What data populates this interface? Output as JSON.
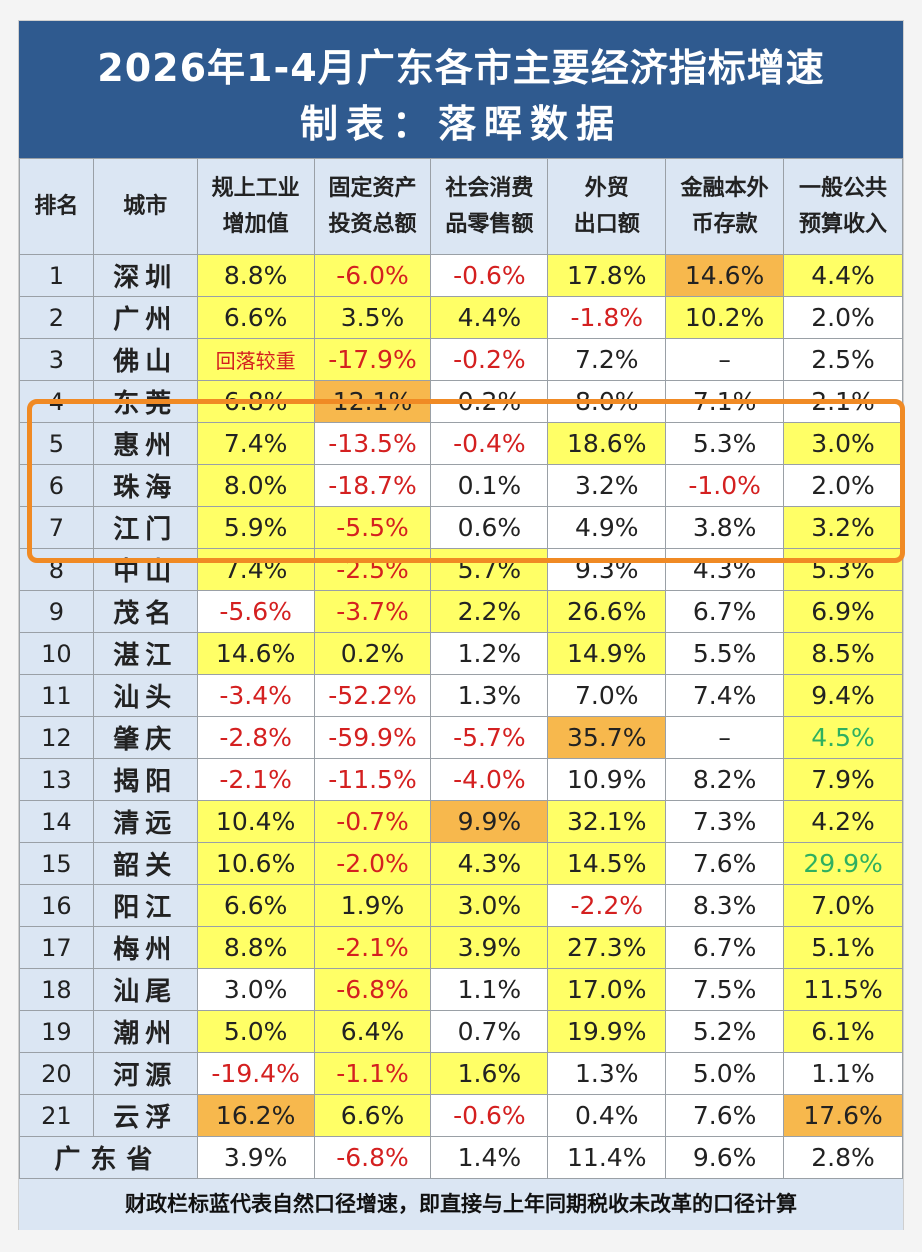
{
  "title": {
    "line1": "2026年1-4月广东各市主要经济指标增速",
    "line2": "制表：落晖数据"
  },
  "columns": [
    {
      "l1": "排名",
      "l2": ""
    },
    {
      "l1": "城市",
      "l2": ""
    },
    {
      "l1": "规上工业",
      "l2": "增加值"
    },
    {
      "l1": "固定资产",
      "l2": "投资总额"
    },
    {
      "l1": "社会消费",
      "l2": "品零售额"
    },
    {
      "l1": "外贸",
      "l2": "出口额"
    },
    {
      "l1": "金融本外",
      "l2": "币存款"
    },
    {
      "l1": "一般公共",
      "l2": "预算收入"
    }
  ],
  "rows": [
    {
      "rank": "1",
      "city": "深圳",
      "cells": [
        {
          "v": "8.8%",
          "bg": "Y",
          "c": ""
        },
        {
          "v": "-6.0%",
          "bg": "Y",
          "c": "red"
        },
        {
          "v": "-0.6%",
          "bg": "W",
          "c": "red"
        },
        {
          "v": "17.8%",
          "bg": "Y",
          "c": ""
        },
        {
          "v": "14.6%",
          "bg": "O",
          "c": ""
        },
        {
          "v": "4.4%",
          "bg": "Y",
          "c": ""
        }
      ]
    },
    {
      "rank": "2",
      "city": "广州",
      "cells": [
        {
          "v": "6.6%",
          "bg": "Y",
          "c": ""
        },
        {
          "v": "3.5%",
          "bg": "Y",
          "c": ""
        },
        {
          "v": "4.4%",
          "bg": "Y",
          "c": ""
        },
        {
          "v": "-1.8%",
          "bg": "W",
          "c": "red"
        },
        {
          "v": "10.2%",
          "bg": "Y",
          "c": ""
        },
        {
          "v": "2.0%",
          "bg": "W",
          "c": ""
        }
      ]
    },
    {
      "rank": "3",
      "city": "佛山",
      "cells": [
        {
          "v": "回落较重",
          "bg": "Y",
          "c": "red small"
        },
        {
          "v": "-17.9%",
          "bg": "Y",
          "c": "red"
        },
        {
          "v": "-0.2%",
          "bg": "W",
          "c": "red"
        },
        {
          "v": "7.2%",
          "bg": "W",
          "c": ""
        },
        {
          "v": "–",
          "bg": "W",
          "c": ""
        },
        {
          "v": "2.5%",
          "bg": "W",
          "c": ""
        }
      ]
    },
    {
      "rank": "4",
      "city": "东莞",
      "cells": [
        {
          "v": "6.8%",
          "bg": "Y",
          "c": ""
        },
        {
          "v": "12.1%",
          "bg": "O",
          "c": ""
        },
        {
          "v": "0.2%",
          "bg": "W",
          "c": ""
        },
        {
          "v": "8.0%",
          "bg": "W",
          "c": ""
        },
        {
          "v": "7.1%",
          "bg": "W",
          "c": ""
        },
        {
          "v": "2.1%",
          "bg": "W",
          "c": ""
        }
      ]
    },
    {
      "rank": "5",
      "city": "惠州",
      "cells": [
        {
          "v": "7.4%",
          "bg": "Y",
          "c": ""
        },
        {
          "v": "-13.5%",
          "bg": "W",
          "c": "red"
        },
        {
          "v": "-0.4%",
          "bg": "W",
          "c": "red"
        },
        {
          "v": "18.6%",
          "bg": "Y",
          "c": ""
        },
        {
          "v": "5.3%",
          "bg": "W",
          "c": ""
        },
        {
          "v": "3.0%",
          "bg": "Y",
          "c": ""
        }
      ]
    },
    {
      "rank": "6",
      "city": "珠海",
      "cells": [
        {
          "v": "8.0%",
          "bg": "Y",
          "c": ""
        },
        {
          "v": "-18.7%",
          "bg": "W",
          "c": "red"
        },
        {
          "v": "0.1%",
          "bg": "W",
          "c": ""
        },
        {
          "v": "3.2%",
          "bg": "W",
          "c": ""
        },
        {
          "v": "-1.0%",
          "bg": "W",
          "c": "red"
        },
        {
          "v": "2.0%",
          "bg": "W",
          "c": ""
        }
      ]
    },
    {
      "rank": "7",
      "city": "江门",
      "cells": [
        {
          "v": "5.9%",
          "bg": "Y",
          "c": ""
        },
        {
          "v": "-5.5%",
          "bg": "Y",
          "c": "red"
        },
        {
          "v": "0.6%",
          "bg": "W",
          "c": ""
        },
        {
          "v": "4.9%",
          "bg": "W",
          "c": ""
        },
        {
          "v": "3.8%",
          "bg": "W",
          "c": ""
        },
        {
          "v": "3.2%",
          "bg": "Y",
          "c": ""
        }
      ]
    },
    {
      "rank": "8",
      "city": "中山",
      "cells": [
        {
          "v": "7.4%",
          "bg": "Y",
          "c": ""
        },
        {
          "v": "-2.5%",
          "bg": "Y",
          "c": "red"
        },
        {
          "v": "5.7%",
          "bg": "Y",
          "c": ""
        },
        {
          "v": "9.3%",
          "bg": "W",
          "c": ""
        },
        {
          "v": "4.3%",
          "bg": "W",
          "c": ""
        },
        {
          "v": "5.3%",
          "bg": "Y",
          "c": ""
        }
      ]
    },
    {
      "rank": "9",
      "city": "茂名",
      "cells": [
        {
          "v": "-5.6%",
          "bg": "W",
          "c": "red"
        },
        {
          "v": "-3.7%",
          "bg": "Y",
          "c": "red"
        },
        {
          "v": "2.2%",
          "bg": "Y",
          "c": ""
        },
        {
          "v": "26.6%",
          "bg": "Y",
          "c": ""
        },
        {
          "v": "6.7%",
          "bg": "W",
          "c": ""
        },
        {
          "v": "6.9%",
          "bg": "Y",
          "c": ""
        }
      ]
    },
    {
      "rank": "10",
      "city": "湛江",
      "cells": [
        {
          "v": "14.6%",
          "bg": "Y",
          "c": ""
        },
        {
          "v": "0.2%",
          "bg": "Y",
          "c": ""
        },
        {
          "v": "1.2%",
          "bg": "W",
          "c": ""
        },
        {
          "v": "14.9%",
          "bg": "Y",
          "c": ""
        },
        {
          "v": "5.5%",
          "bg": "W",
          "c": ""
        },
        {
          "v": "8.5%",
          "bg": "Y",
          "c": ""
        }
      ]
    },
    {
      "rank": "11",
      "city": "汕头",
      "cells": [
        {
          "v": "-3.4%",
          "bg": "W",
          "c": "red"
        },
        {
          "v": "-52.2%",
          "bg": "W",
          "c": "red"
        },
        {
          "v": "1.3%",
          "bg": "W",
          "c": ""
        },
        {
          "v": "7.0%",
          "bg": "W",
          "c": ""
        },
        {
          "v": "7.4%",
          "bg": "W",
          "c": ""
        },
        {
          "v": "9.4%",
          "bg": "Y",
          "c": ""
        }
      ]
    },
    {
      "rank": "12",
      "city": "肇庆",
      "cells": [
        {
          "v": "-2.8%",
          "bg": "W",
          "c": "red"
        },
        {
          "v": "-59.9%",
          "bg": "W",
          "c": "red"
        },
        {
          "v": "-5.7%",
          "bg": "W",
          "c": "red"
        },
        {
          "v": "35.7%",
          "bg": "O",
          "c": ""
        },
        {
          "v": "–",
          "bg": "W",
          "c": ""
        },
        {
          "v": "4.5%",
          "bg": "Y",
          "c": "green"
        }
      ]
    },
    {
      "rank": "13",
      "city": "揭阳",
      "cells": [
        {
          "v": "-2.1%",
          "bg": "W",
          "c": "red"
        },
        {
          "v": "-11.5%",
          "bg": "W",
          "c": "red"
        },
        {
          "v": "-4.0%",
          "bg": "W",
          "c": "red"
        },
        {
          "v": "10.9%",
          "bg": "W",
          "c": ""
        },
        {
          "v": "8.2%",
          "bg": "W",
          "c": ""
        },
        {
          "v": "7.9%",
          "bg": "Y",
          "c": ""
        }
      ]
    },
    {
      "rank": "14",
      "city": "清远",
      "cells": [
        {
          "v": "10.4%",
          "bg": "Y",
          "c": ""
        },
        {
          "v": "-0.7%",
          "bg": "Y",
          "c": "red"
        },
        {
          "v": "9.9%",
          "bg": "O",
          "c": ""
        },
        {
          "v": "32.1%",
          "bg": "Y",
          "c": ""
        },
        {
          "v": "7.3%",
          "bg": "W",
          "c": ""
        },
        {
          "v": "4.2%",
          "bg": "Y",
          "c": ""
        }
      ]
    },
    {
      "rank": "15",
      "city": "韶关",
      "cells": [
        {
          "v": "10.6%",
          "bg": "Y",
          "c": ""
        },
        {
          "v": "-2.0%",
          "bg": "Y",
          "c": "red"
        },
        {
          "v": "4.3%",
          "bg": "Y",
          "c": ""
        },
        {
          "v": "14.5%",
          "bg": "Y",
          "c": ""
        },
        {
          "v": "7.6%",
          "bg": "W",
          "c": ""
        },
        {
          "v": "29.9%",
          "bg": "Y",
          "c": "green"
        }
      ]
    },
    {
      "rank": "16",
      "city": "阳江",
      "cells": [
        {
          "v": "6.6%",
          "bg": "Y",
          "c": ""
        },
        {
          "v": "1.9%",
          "bg": "Y",
          "c": ""
        },
        {
          "v": "3.0%",
          "bg": "Y",
          "c": ""
        },
        {
          "v": "-2.2%",
          "bg": "W",
          "c": "red"
        },
        {
          "v": "8.3%",
          "bg": "W",
          "c": ""
        },
        {
          "v": "7.0%",
          "bg": "Y",
          "c": ""
        }
      ]
    },
    {
      "rank": "17",
      "city": "梅州",
      "cells": [
        {
          "v": "8.8%",
          "bg": "Y",
          "c": ""
        },
        {
          "v": "-2.1%",
          "bg": "Y",
          "c": "red"
        },
        {
          "v": "3.9%",
          "bg": "Y",
          "c": ""
        },
        {
          "v": "27.3%",
          "bg": "Y",
          "c": ""
        },
        {
          "v": "6.7%",
          "bg": "W",
          "c": ""
        },
        {
          "v": "5.1%",
          "bg": "Y",
          "c": ""
        }
      ]
    },
    {
      "rank": "18",
      "city": "汕尾",
      "cells": [
        {
          "v": "3.0%",
          "bg": "W",
          "c": ""
        },
        {
          "v": "-6.8%",
          "bg": "Y",
          "c": "red"
        },
        {
          "v": "1.1%",
          "bg": "W",
          "c": ""
        },
        {
          "v": "17.0%",
          "bg": "Y",
          "c": ""
        },
        {
          "v": "7.5%",
          "bg": "W",
          "c": ""
        },
        {
          "v": "11.5%",
          "bg": "Y",
          "c": ""
        }
      ]
    },
    {
      "rank": "19",
      "city": "潮州",
      "cells": [
        {
          "v": "5.0%",
          "bg": "Y",
          "c": ""
        },
        {
          "v": "6.4%",
          "bg": "Y",
          "c": ""
        },
        {
          "v": "0.7%",
          "bg": "W",
          "c": ""
        },
        {
          "v": "19.9%",
          "bg": "Y",
          "c": ""
        },
        {
          "v": "5.2%",
          "bg": "W",
          "c": ""
        },
        {
          "v": "6.1%",
          "bg": "Y",
          "c": ""
        }
      ]
    },
    {
      "rank": "20",
      "city": "河源",
      "cells": [
        {
          "v": "-19.4%",
          "bg": "W",
          "c": "red"
        },
        {
          "v": "-1.1%",
          "bg": "Y",
          "c": "red"
        },
        {
          "v": "1.6%",
          "bg": "Y",
          "c": ""
        },
        {
          "v": "1.3%",
          "bg": "W",
          "c": ""
        },
        {
          "v": "5.0%",
          "bg": "W",
          "c": ""
        },
        {
          "v": "1.1%",
          "bg": "W",
          "c": ""
        }
      ]
    },
    {
      "rank": "21",
      "city": "云浮",
      "cells": [
        {
          "v": "16.2%",
          "bg": "O",
          "c": ""
        },
        {
          "v": "6.6%",
          "bg": "Y",
          "c": ""
        },
        {
          "v": "-0.6%",
          "bg": "W",
          "c": "red"
        },
        {
          "v": "0.4%",
          "bg": "W",
          "c": ""
        },
        {
          "v": "7.6%",
          "bg": "W",
          "c": ""
        },
        {
          "v": "17.6%",
          "bg": "O",
          "c": ""
        }
      ]
    }
  ],
  "province": {
    "label": "广东省",
    "cells": [
      {
        "v": "3.9%",
        "c": ""
      },
      {
        "v": "-6.8%",
        "c": "red"
      },
      {
        "v": "1.4%",
        "c": ""
      },
      {
        "v": "11.4%",
        "c": ""
      },
      {
        "v": "9.6%",
        "c": ""
      },
      {
        "v": "2.8%",
        "c": ""
      }
    ]
  },
  "footnote": "财政栏标蓝代表自然口径增速，即直接与上年同期税收未改革的口径计算",
  "colors": {
    "title_band": "#2f5a8f",
    "header_bg": "#dbe6f3",
    "yellow": "#ffff66",
    "orange": "#f7b84d",
    "negative_text": "#d42020",
    "green_text": "#2fb060",
    "highlight_border": "#f08a24"
  }
}
